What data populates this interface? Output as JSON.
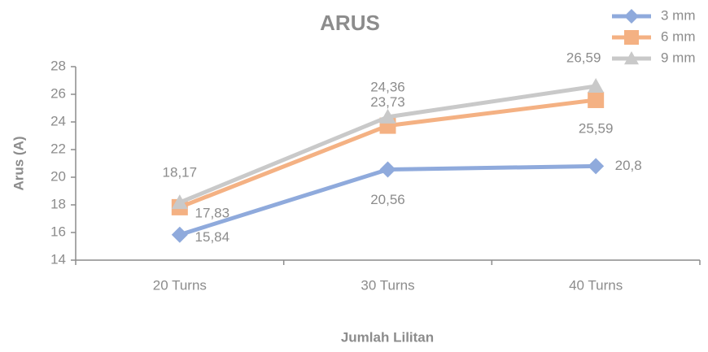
{
  "chart_data": {
    "type": "line",
    "title": "ARUS",
    "x_label": "Jumlah Lilitan",
    "y_label": "Arus (A)",
    "categories": [
      "20 Turns",
      "30 Turns",
      "40 Turns"
    ],
    "series": [
      {
        "name": "3 mm",
        "color": "#8faadc",
        "marker": "diamond",
        "values": [
          15.84,
          20.56,
          20.8
        ],
        "value_labels": [
          "15,84",
          "20,56",
          "20,8"
        ]
      },
      {
        "name": "6 mm",
        "color": "#f4b183",
        "marker": "square",
        "values": [
          17.83,
          23.73,
          25.59
        ],
        "value_labels": [
          "17,83",
          "23,73",
          "25,59"
        ]
      },
      {
        "name": "9 mm",
        "color": "#c9c9c9",
        "marker": "triangle",
        "values": [
          18.17,
          24.36,
          26.59
        ],
        "value_labels": [
          "18,17",
          "24,36",
          "26,59"
        ]
      }
    ],
    "ylim": [
      14,
      28
    ],
    "yticks": [
      14,
      16,
      18,
      20,
      22,
      24,
      26,
      28
    ],
    "legend": "top-right"
  }
}
